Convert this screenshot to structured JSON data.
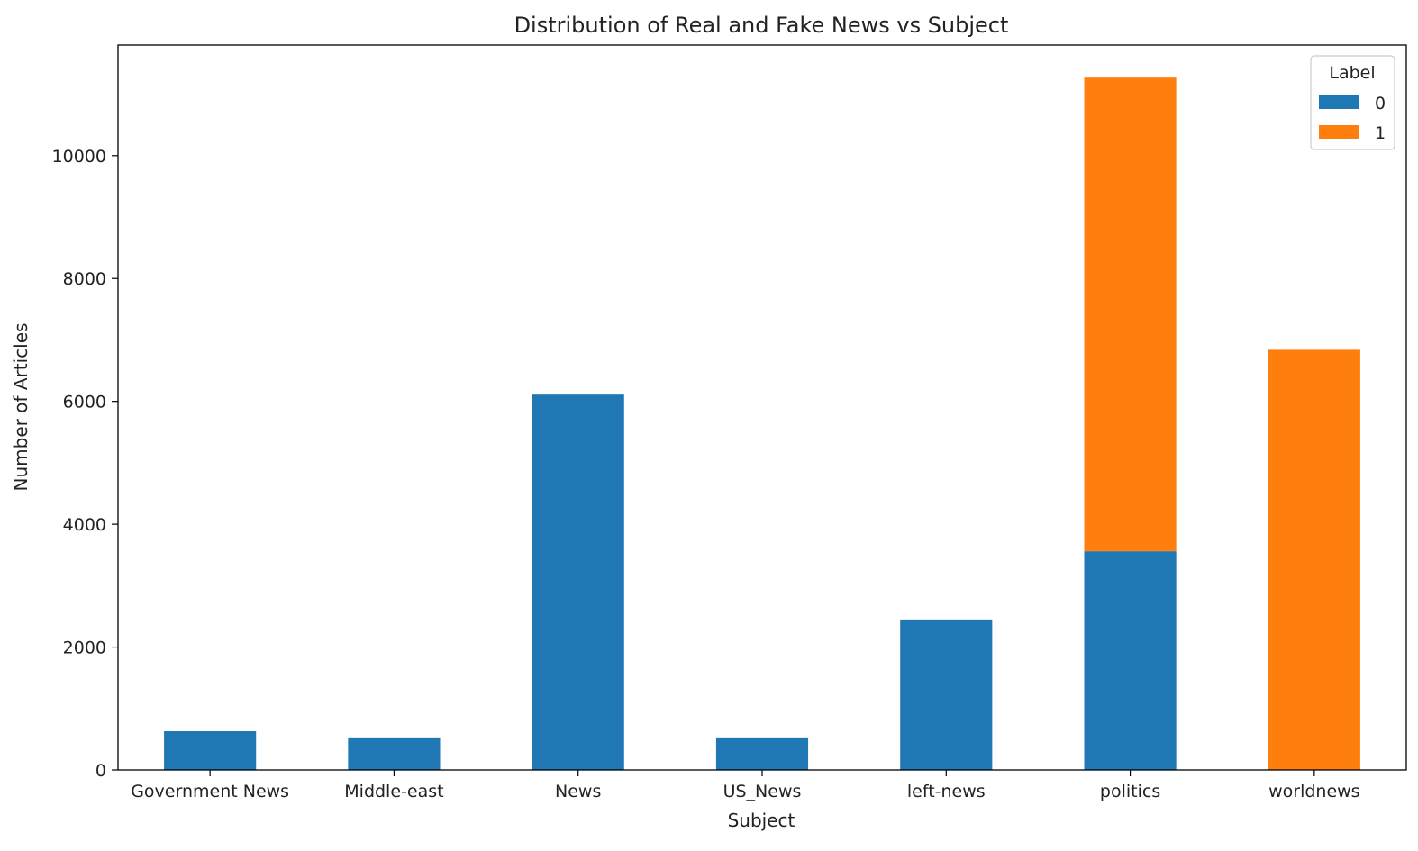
{
  "chart_data": {
    "type": "bar",
    "stacked": true,
    "title": "Distribution of Real and Fake News vs Subject",
    "xlabel": "Subject",
    "ylabel": "Number of Articles",
    "categories": [
      "Government News",
      "Middle-east",
      "News",
      "US_News",
      "left-news",
      "politics",
      "worldnews"
    ],
    "series": [
      {
        "name": "0",
        "color": "#1f77b4",
        "values": [
          630,
          530,
          6110,
          530,
          2450,
          3560,
          0
        ]
      },
      {
        "name": "1",
        "color": "#ff7f0e",
        "values": [
          0,
          0,
          0,
          0,
          0,
          7710,
          6840
        ]
      }
    ],
    "ylim": [
      0,
      11800
    ],
    "yticks": [
      0,
      2000,
      4000,
      6000,
      8000,
      10000
    ],
    "legend": {
      "title": "Label",
      "position": "top-right"
    },
    "grid": false
  }
}
